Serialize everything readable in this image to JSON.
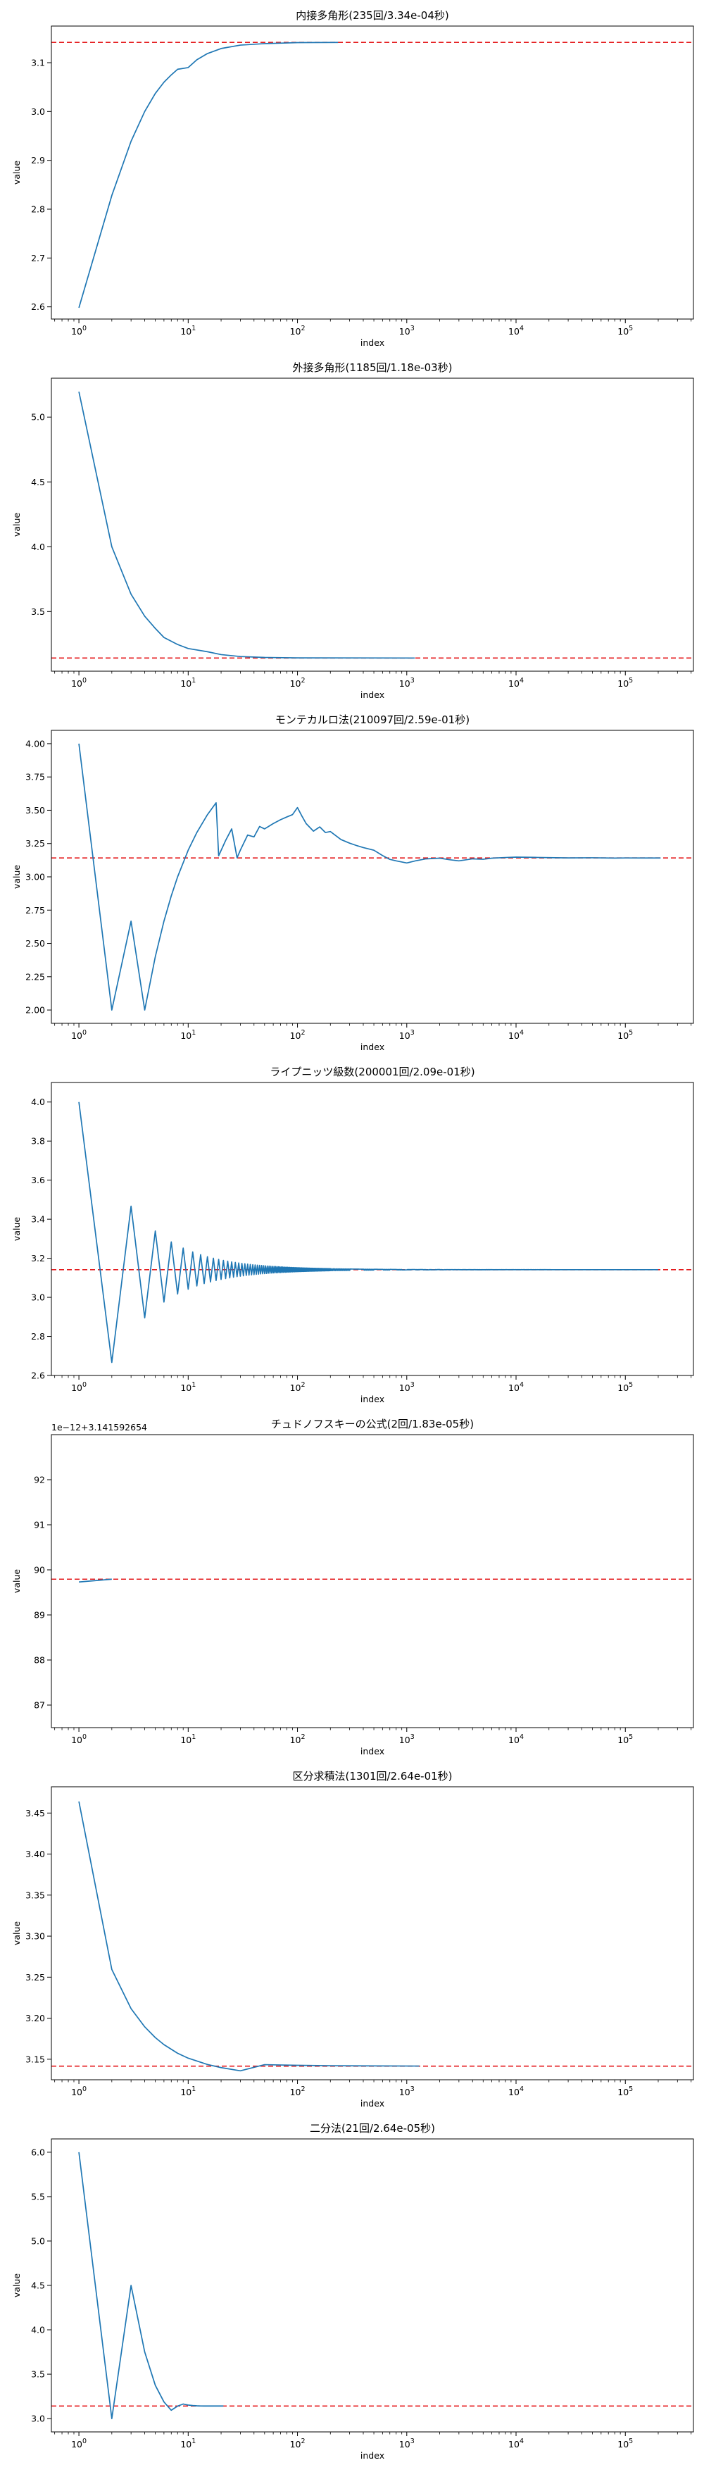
{
  "chart_data": [
    {
      "type": "line",
      "title": "内接多角形(235回/3.34e-04秒)",
      "xlabel": "index",
      "ylabel": "value",
      "xscale": "log",
      "xlim": [
        0.56,
        420000
      ],
      "ylim": [
        2.575,
        3.175
      ],
      "yticks": [
        2.6,
        2.7,
        2.8,
        2.9,
        3.0,
        3.1
      ],
      "ytick_labels": [
        "2.6",
        "2.7",
        "2.8",
        "2.9",
        "3.0",
        "3.1"
      ],
      "reference_line": {
        "y": 3.141592653589793,
        "color": "#e41a1c",
        "style": "dashed"
      },
      "series": [
        {
          "color": "#1f77b4",
          "x": [
            1,
            2,
            3,
            4,
            5,
            6,
            7,
            8,
            10,
            12,
            15,
            20,
            30,
            50,
            100,
            235
          ],
          "y": [
            2.598,
            2.828,
            2.939,
            3.0,
            3.037,
            3.06,
            3.075,
            3.0865,
            3.09,
            3.106,
            3.1187,
            3.129,
            3.136,
            3.139,
            3.1411,
            3.1415
          ]
        }
      ]
    },
    {
      "type": "line",
      "title": "外接多角形(1185回/1.18e-03秒)",
      "xlabel": "index",
      "ylabel": "value",
      "xscale": "log",
      "xlim": [
        0.56,
        420000
      ],
      "ylim": [
        3.04,
        5.3
      ],
      "yticks": [
        3.5,
        4.0,
        4.5,
        5.0
      ],
      "ytick_labels": [
        "3.5",
        "4.0",
        "4.5",
        "5.0"
      ],
      "reference_line": {
        "y": 3.141592653589793,
        "color": "#e41a1c",
        "style": "dashed"
      },
      "series": [
        {
          "color": "#1f77b4",
          "x": [
            1,
            2,
            3,
            4,
            5,
            6,
            8,
            10,
            15,
            20,
            30,
            50,
            100,
            1185
          ],
          "y": [
            5.196,
            4.0,
            3.634,
            3.464,
            3.37,
            3.3,
            3.246,
            3.215,
            3.19,
            3.168,
            3.153,
            3.146,
            3.1426,
            3.1416
          ]
        }
      ]
    },
    {
      "type": "line",
      "title": "モンテカルロ法(210097回/2.59e-01秒)",
      "xlabel": "index",
      "ylabel": "value",
      "xscale": "log",
      "xlim": [
        0.56,
        420000
      ],
      "ylim": [
        1.9,
        4.1
      ],
      "yticks": [
        2.0,
        2.25,
        2.5,
        2.75,
        3.0,
        3.25,
        3.5,
        3.75,
        4.0
      ],
      "ytick_labels": [
        "2.00",
        "2.25",
        "2.50",
        "2.75",
        "3.00",
        "3.25",
        "3.50",
        "3.75",
        "4.00"
      ],
      "reference_line": {
        "y": 3.141592653589793,
        "color": "#e41a1c",
        "style": "dashed"
      },
      "series": [
        {
          "color": "#1f77b4",
          "x": [
            1,
            2,
            3,
            4,
            5,
            6,
            7,
            8,
            10,
            12,
            15,
            18,
            19,
            22,
            25,
            28,
            30,
            35,
            40,
            45,
            50,
            60,
            70,
            80,
            90,
            100,
            110,
            120,
            140,
            160,
            180,
            200,
            250,
            300,
            350,
            400,
            500,
            600,
            700,
            800,
            1000,
            1200,
            1500,
            2000,
            2500,
            3000,
            4000,
            5000,
            6000,
            8000,
            10000,
            15000,
            20000,
            30000,
            50000,
            80000,
            100000,
            150000,
            210097
          ],
          "y": [
            4.0,
            2.0,
            2.667,
            2.0,
            2.4,
            2.667,
            2.857,
            3.0,
            3.2,
            3.333,
            3.467,
            3.556,
            3.158,
            3.273,
            3.36,
            3.143,
            3.2,
            3.314,
            3.3,
            3.378,
            3.36,
            3.4,
            3.429,
            3.45,
            3.467,
            3.52,
            3.455,
            3.4,
            3.343,
            3.375,
            3.333,
            3.34,
            3.28,
            3.253,
            3.234,
            3.22,
            3.2,
            3.16,
            3.131,
            3.12,
            3.104,
            3.12,
            3.135,
            3.14,
            3.128,
            3.12,
            3.135,
            3.132,
            3.14,
            3.145,
            3.148,
            3.146,
            3.144,
            3.142,
            3.143,
            3.141,
            3.1418,
            3.1416,
            3.1415
          ]
        }
      ]
    },
    {
      "type": "line",
      "title": "ライプニッツ級数(200001回/2.09e-01秒)",
      "xlabel": "index",
      "ylabel": "value",
      "xscale": "log",
      "xlim": [
        0.56,
        420000
      ],
      "ylim": [
        2.6,
        4.1
      ],
      "yticks": [
        2.6,
        2.8,
        3.0,
        3.2,
        3.4,
        3.6,
        3.8,
        4.0
      ],
      "ytick_labels": [
        "2.6",
        "2.8",
        "3.0",
        "3.2",
        "3.4",
        "3.6",
        "3.8",
        "4.0"
      ],
      "reference_line": {
        "y": 3.141592653589793,
        "color": "#e41a1c",
        "style": "dashed"
      },
      "series": [
        {
          "color": "#1f77b4",
          "leibniz_terms": 200001
        }
      ]
    },
    {
      "type": "line",
      "title": "チュドノフスキーの公式(2回/1.83e-05秒)",
      "xlabel": "index",
      "ylabel": "value",
      "xscale": "log",
      "xlim": [
        0.56,
        420000
      ],
      "ylim": [
        86.5,
        93.0
      ],
      "offset_text": "1e−12+3.141592654",
      "yticks": [
        87,
        88,
        89,
        90,
        91,
        92
      ],
      "ytick_labels": [
        "87",
        "88",
        "89",
        "90",
        "91",
        "92"
      ],
      "reference_line": {
        "y": 89.793,
        "color": "#e41a1c",
        "style": "dashed"
      },
      "series": [
        {
          "color": "#1f77b4",
          "x": [
            1,
            2
          ],
          "y": [
            89.73,
            89.793
          ]
        }
      ]
    },
    {
      "type": "line",
      "title": "区分求積法(1301回/2.64e-01秒)",
      "xlabel": "index",
      "ylabel": "value",
      "xscale": "log",
      "xlim": [
        0.56,
        420000
      ],
      "ylim": [
        3.125,
        3.482
      ],
      "yticks": [
        3.15,
        3.2,
        3.25,
        3.3,
        3.35,
        3.4,
        3.45
      ],
      "ytick_labels": [
        "3.15",
        "3.20",
        "3.25",
        "3.30",
        "3.35",
        "3.40",
        "3.45"
      ],
      "reference_line": {
        "y": 3.141592653589793,
        "color": "#e41a1c",
        "style": "dashed"
      },
      "series": [
        {
          "color": "#1f77b4",
          "x": [
            1,
            2,
            3,
            4,
            5,
            6,
            8,
            10,
            15,
            20,
            30,
            50,
            100,
            200,
            1301
          ],
          "y": [
            3.4641,
            3.2594,
            3.2117,
            3.1895,
            3.1764,
            3.1678,
            3.1573,
            3.1513,
            3.1436,
            3.1398,
            3.1359,
            3.1434,
            3.1426,
            3.1421,
            3.1417
          ]
        }
      ]
    },
    {
      "type": "line",
      "title": "二分法(21回/2.64e-05秒)",
      "xlabel": "index",
      "ylabel": "value",
      "xscale": "log",
      "xlim": [
        0.56,
        420000
      ],
      "ylim": [
        2.85,
        6.15
      ],
      "yticks": [
        3.0,
        3.5,
        4.0,
        4.5,
        5.0,
        5.5,
        6.0
      ],
      "ytick_labels": [
        "3.0",
        "3.5",
        "4.0",
        "4.5",
        "5.0",
        "5.5",
        "6.0"
      ],
      "reference_line": {
        "y": 3.141592653589793,
        "color": "#e41a1c",
        "style": "dashed"
      },
      "series": [
        {
          "color": "#1f77b4",
          "x": [
            1,
            2,
            3,
            4,
            5,
            6,
            7,
            8,
            9,
            10,
            11,
            12,
            13,
            14,
            15,
            16,
            17,
            18,
            19,
            20,
            21
          ],
          "y": [
            6.0,
            3.0,
            4.5,
            3.75,
            3.375,
            3.1875,
            3.09375,
            3.140625,
            3.1640625,
            3.15234,
            3.14648,
            3.14355,
            3.14209,
            3.14136,
            3.14172,
            3.14154,
            3.14163,
            3.14159,
            3.14161,
            3.1416,
            3.14159
          ]
        }
      ]
    }
  ]
}
